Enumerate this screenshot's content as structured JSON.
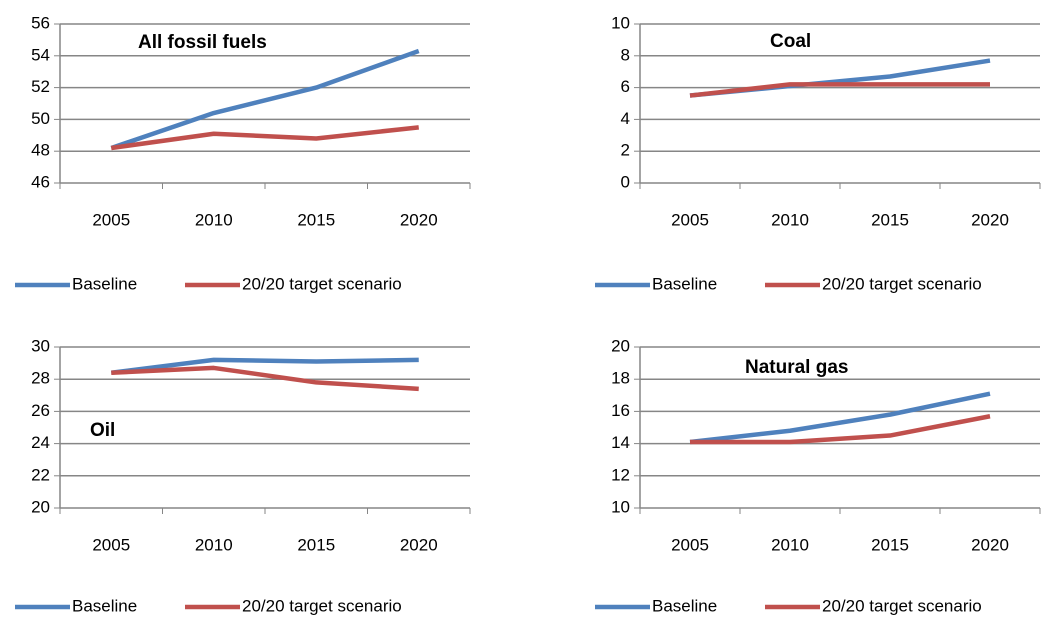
{
  "chart_data": [
    {
      "type": "line",
      "title": "All fossil fuels",
      "categories": [
        "2005",
        "2010",
        "2015",
        "2020"
      ],
      "series": [
        {
          "name": "Baseline",
          "color": "#4f81bd",
          "values": [
            48.2,
            50.4,
            52.0,
            54.3
          ]
        },
        {
          "name": "20/20 target scenario",
          "color": "#c0504d",
          "values": [
            48.2,
            49.1,
            48.8,
            49.5
          ]
        }
      ],
      "ylim": [
        46,
        56
      ],
      "yticks": [
        46,
        48,
        50,
        52,
        54,
        56
      ],
      "grid": true
    },
    {
      "type": "line",
      "title": "Coal",
      "categories": [
        "2005",
        "2010",
        "2015",
        "2020"
      ],
      "series": [
        {
          "name": "Baseline",
          "color": "#4f81bd",
          "values": [
            5.5,
            6.1,
            6.7,
            7.7
          ]
        },
        {
          "name": "20/20 target scenario",
          "color": "#c0504d",
          "values": [
            5.5,
            6.2,
            6.2,
            6.2
          ]
        }
      ],
      "ylim": [
        0,
        10
      ],
      "yticks": [
        0,
        2,
        4,
        6,
        8,
        10
      ],
      "grid": true
    },
    {
      "type": "line",
      "title": "Oil",
      "categories": [
        "2005",
        "2010",
        "2015",
        "2020"
      ],
      "series": [
        {
          "name": "Baseline",
          "color": "#4f81bd",
          "values": [
            28.4,
            29.2,
            29.1,
            29.2
          ]
        },
        {
          "name": "20/20 target scenario",
          "color": "#c0504d",
          "values": [
            28.4,
            28.7,
            27.8,
            27.4
          ]
        }
      ],
      "ylim": [
        20,
        30
      ],
      "yticks": [
        20,
        22,
        24,
        26,
        28,
        30
      ],
      "grid": true
    },
    {
      "type": "line",
      "title": "Natural gas",
      "categories": [
        "2005",
        "2010",
        "2015",
        "2020"
      ],
      "series": [
        {
          "name": "Baseline",
          "color": "#4f81bd",
          "values": [
            14.1,
            14.8,
            15.8,
            17.1
          ]
        },
        {
          "name": "20/20 target scenario",
          "color": "#c0504d",
          "values": [
            14.1,
            14.1,
            14.5,
            15.7
          ]
        }
      ],
      "ylim": [
        10,
        20
      ],
      "yticks": [
        10,
        12,
        14,
        16,
        18,
        20
      ],
      "grid": true
    }
  ]
}
